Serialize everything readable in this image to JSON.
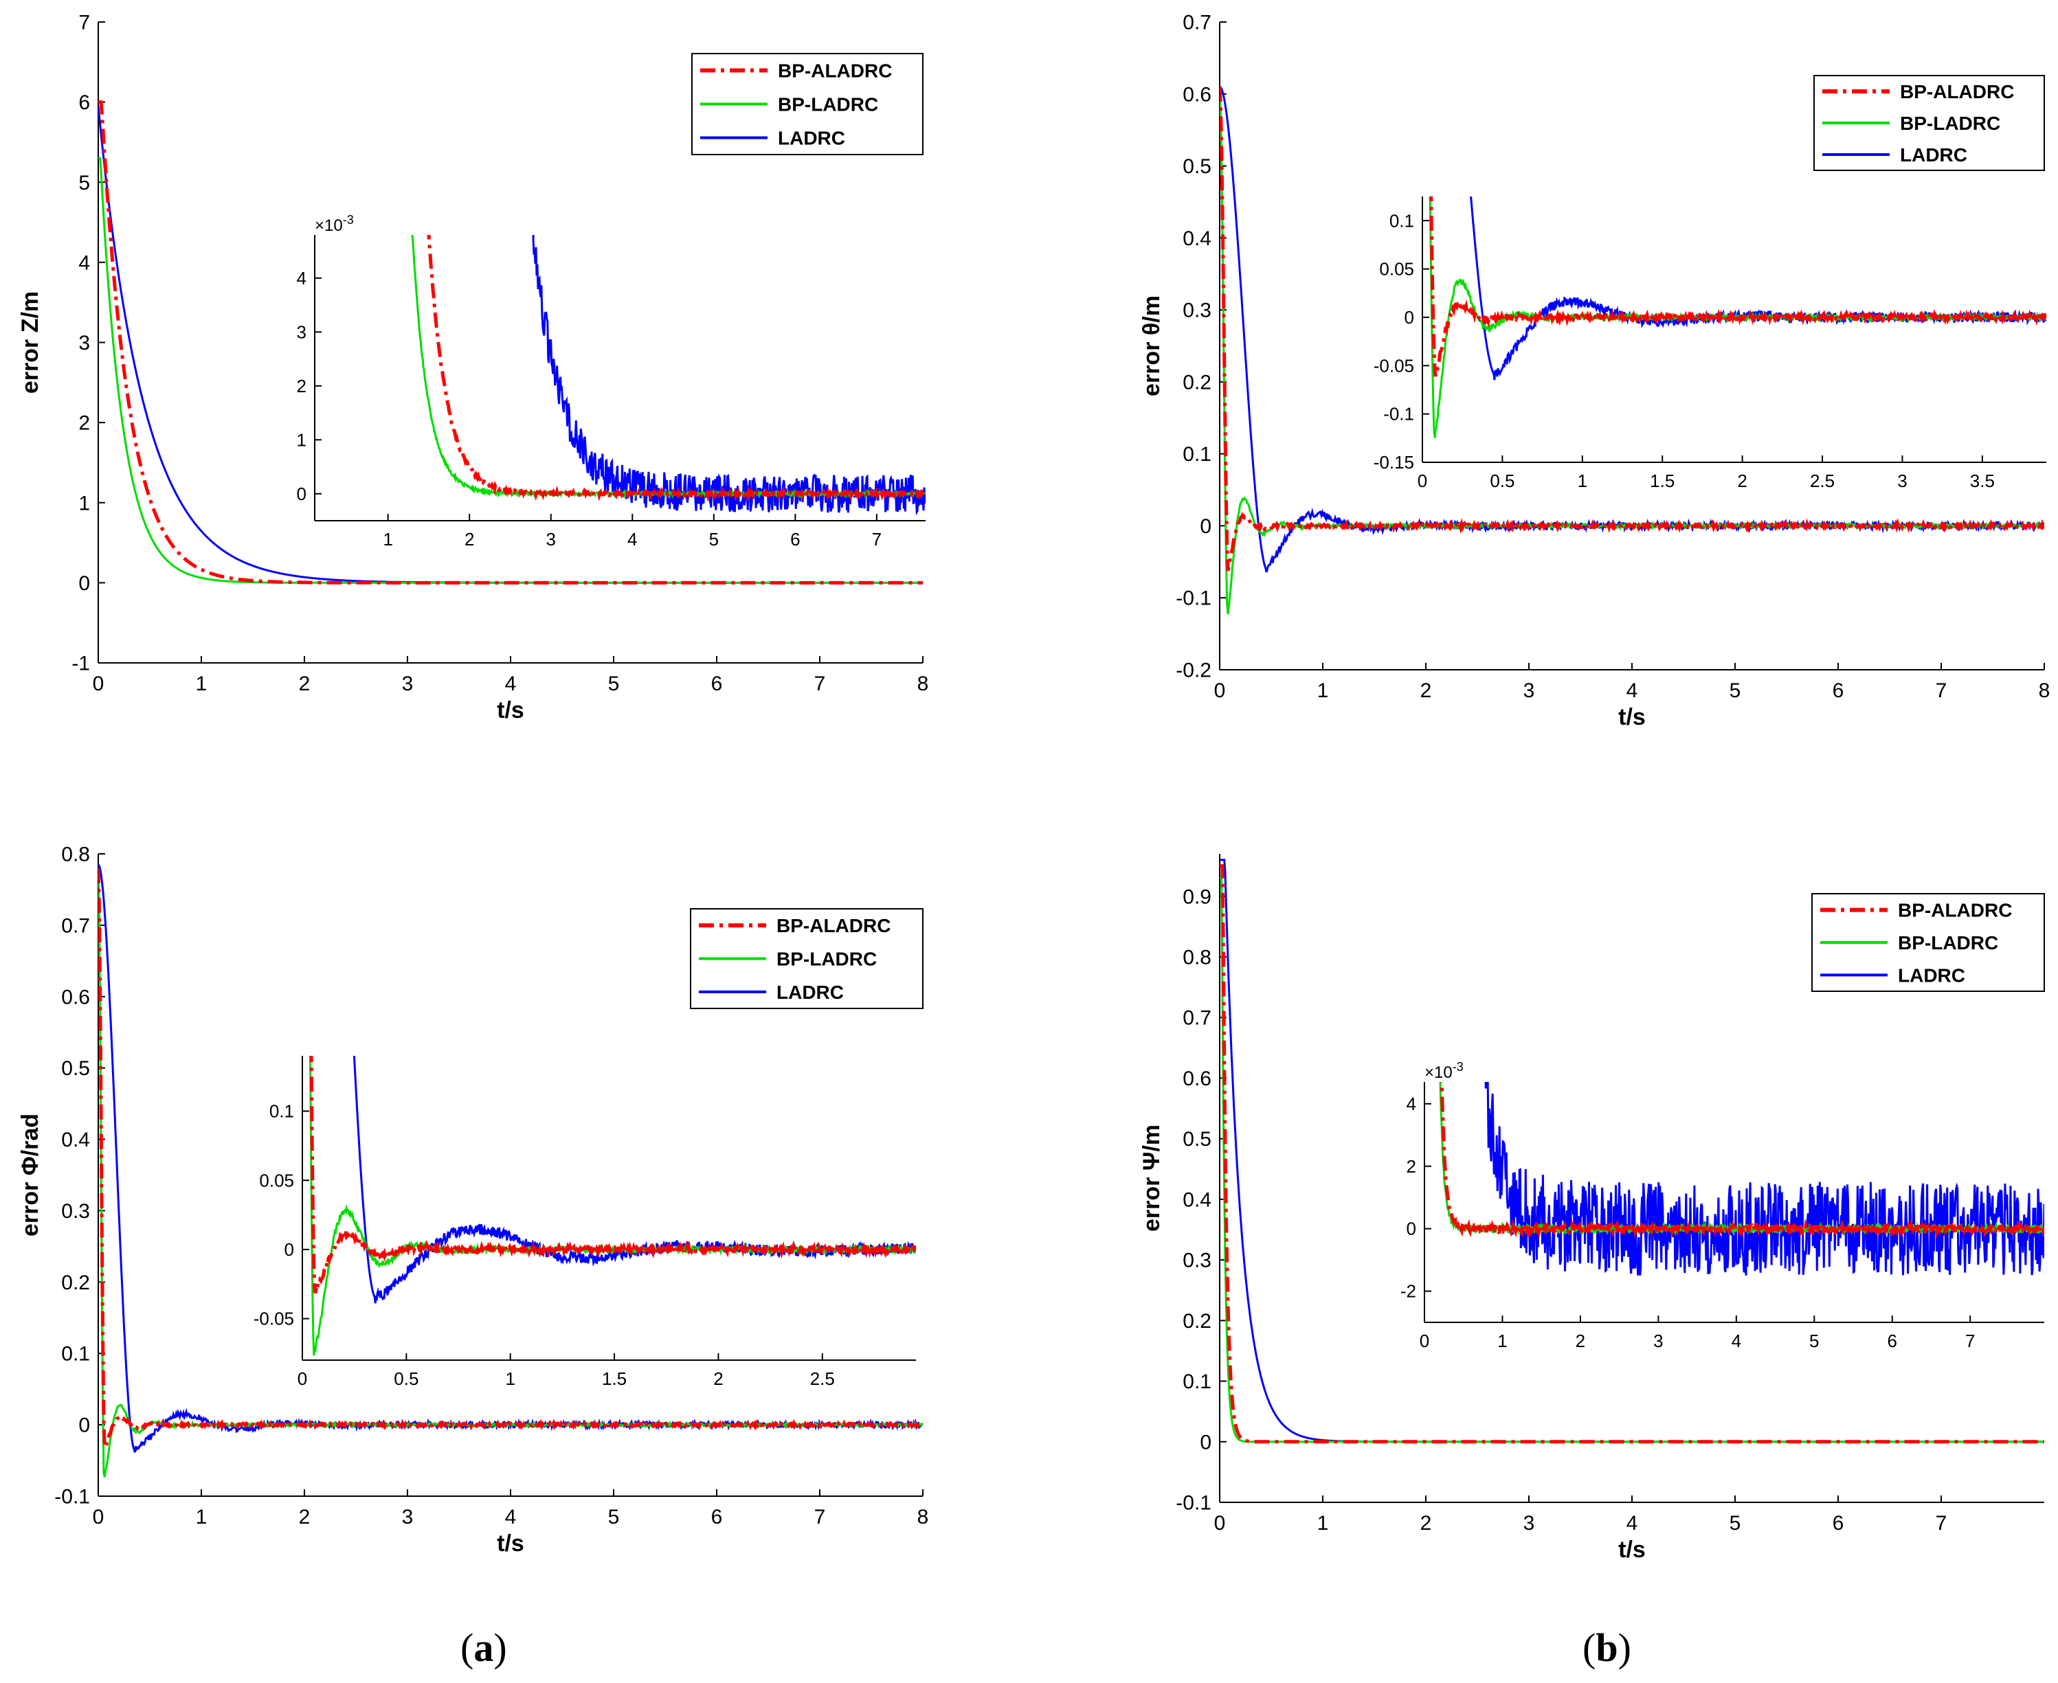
{
  "colors": {
    "bp_aladrc": "#ff0000",
    "bp_ladrc": "#00dd00",
    "ladrc": "#0000ff",
    "axis": "#000000"
  },
  "legend": [
    "BP-ALADRC",
    "BP-LADRC",
    "LADRC"
  ],
  "captions": {
    "a": "a",
    "b": "b"
  },
  "chart_data": [
    {
      "type": "line",
      "id": "p1",
      "xlabel": "t/s",
      "ylabel": "error Z/m",
      "xlim": [
        0,
        8
      ],
      "ylim": [
        -1,
        7
      ],
      "xticks": [
        "0",
        "1",
        "2",
        "3",
        "4",
        "5",
        "6",
        "7",
        "8"
      ],
      "yticks": [
        "-1",
        "0",
        "1",
        "2",
        "3",
        "4",
        "5",
        "6",
        "7"
      ],
      "series": [
        {
          "name": "BP-ALADRC",
          "style": "dashdot",
          "model": "exp",
          "y0": 6,
          "tau": 0.27,
          "delay": 0.03
        },
        {
          "name": "BP-LADRC",
          "style": "solid",
          "model": "exp",
          "y0": 5.3,
          "tau": 0.22,
          "delay": 0.02
        },
        {
          "name": "LADRC",
          "style": "solid",
          "model": "exp",
          "y0": 5.95,
          "tau": 0.45,
          "delay": 0
        }
      ],
      "inset": {
        "xlim": [
          0.1,
          7.6
        ],
        "ylim": [
          -0.5,
          4.8
        ],
        "exponent": "x10^-3",
        "xticks": [
          "1",
          "2",
          "3",
          "4",
          "5",
          "6",
          "7"
        ],
        "yticks": [
          "0",
          "1",
          "2",
          "3",
          "4"
        ],
        "series": [
          {
            "name": "BP-ALADRC",
            "style": "dashdot",
            "model": "decay",
            "start": 1.5,
            "scale": 0.22,
            "noise": 0.03
          },
          {
            "name": "BP-LADRC",
            "style": "solid",
            "model": "decay",
            "start": 1.3,
            "scale": 0.19,
            "noise": 0.03
          },
          {
            "name": "LADRC",
            "style": "solid",
            "model": "decay",
            "start": 2.78,
            "scale": 0.35,
            "noise": 0.35
          }
        ]
      }
    },
    {
      "type": "line",
      "id": "p2",
      "xlabel": "t/s",
      "ylabel": "error θ/m",
      "xlim": [
        0,
        8
      ],
      "ylim": [
        -0.2,
        0.7
      ],
      "xticks": [
        "0",
        "1",
        "2",
        "3",
        "4",
        "5",
        "6",
        "7",
        "8"
      ],
      "yticks": [
        "-0.2",
        "-0.1",
        "0",
        "0.1",
        "0.2",
        "0.3",
        "0.4",
        "0.5",
        "0.6",
        "0.7"
      ],
      "series": [
        {
          "name": "BP-ALADRC",
          "style": "dashdot",
          "model": "osc",
          "y0": 0.61,
          "t_end": 0.08,
          "amp": -0.06,
          "freq": 5.5,
          "decay": 9,
          "noise": 0.0025
        },
        {
          "name": "BP-LADRC",
          "style": "solid",
          "model": "osc",
          "y0": 0.6,
          "t_end": 0.075,
          "amp": -0.125,
          "freq": 5.5,
          "decay": 7,
          "noise": 0.0025
        },
        {
          "name": "LADRC",
          "style": "solid",
          "model": "osc",
          "y0": 0.61,
          "t_end": 0.45,
          "amp": -0.06,
          "freq": 1.8,
          "decay": 2.5,
          "noise": 0.005
        }
      ],
      "inset": {
        "xlim": [
          0,
          3.9
        ],
        "ylim": [
          -0.15,
          0.125
        ],
        "exponent": "",
        "xticks": [
          "0",
          "0.5",
          "1",
          "1.5",
          "2",
          "2.5",
          "3",
          "3.5"
        ],
        "yticks": [
          "-0.15",
          "-0.1",
          "-0.05",
          "0",
          "0.05",
          "0.1"
        ],
        "series": [
          {
            "name": "BP-ALADRC",
            "style": "dashdot",
            "model": "osc",
            "y0": 0.61,
            "t_end": 0.08,
            "amp": -0.06,
            "freq": 5.5,
            "decay": 9,
            "noise": 0.0025
          },
          {
            "name": "BP-LADRC",
            "style": "solid",
            "model": "osc",
            "y0": 0.6,
            "t_end": 0.075,
            "amp": -0.125,
            "freq": 5.5,
            "decay": 7,
            "noise": 0.0025
          },
          {
            "name": "LADRC",
            "style": "solid",
            "model": "osc",
            "y0": 0.61,
            "t_end": 0.45,
            "amp": -0.06,
            "freq": 1.8,
            "decay": 2.5,
            "noise": 0.005
          }
        ]
      }
    },
    {
      "type": "line",
      "id": "p3",
      "xlabel": "t/s",
      "ylabel": "error Φ/rad",
      "xlim": [
        0,
        8
      ],
      "ylim": [
        -0.1,
        0.8
      ],
      "xticks": [
        "0",
        "1",
        "2",
        "3",
        "4",
        "5",
        "6",
        "7",
        "8"
      ],
      "yticks": [
        "-0.1",
        "0",
        "0.1",
        "0.2",
        "0.3",
        "0.4",
        "0.5",
        "0.6",
        "0.7",
        "0.8"
      ],
      "series": [
        {
          "name": "BP-ALADRC",
          "style": "dashdot",
          "model": "osc",
          "y0": 0.78,
          "t_end": 0.06,
          "amp": -0.03,
          "freq": 5.8,
          "decay": 6,
          "noise": 0.002
        },
        {
          "name": "BP-LADRC",
          "style": "solid",
          "model": "osc",
          "y0": 0.78,
          "t_end": 0.055,
          "amp": -0.075,
          "freq": 5.8,
          "decay": 6,
          "noise": 0.002
        },
        {
          "name": "LADRC",
          "style": "solid",
          "model": "osc",
          "y0": 0.785,
          "t_end": 0.35,
          "amp": -0.035,
          "freq": 1.9,
          "decay": 1.7,
          "noise": 0.004
        }
      ],
      "inset": {
        "xlim": [
          0,
          2.95
        ],
        "ylim": [
          -0.08,
          0.14
        ],
        "exponent": "",
        "xticks": [
          "0",
          "0.5",
          "1",
          "1.5",
          "2",
          "2.5"
        ],
        "yticks": [
          "-0.05",
          "0",
          "0.05",
          "0.1"
        ],
        "series": [
          {
            "name": "BP-ALADRC",
            "style": "dashdot",
            "model": "osc",
            "y0": 0.78,
            "t_end": 0.06,
            "amp": -0.03,
            "freq": 5.8,
            "decay": 6,
            "noise": 0.002
          },
          {
            "name": "BP-LADRC",
            "style": "solid",
            "model": "osc",
            "y0": 0.78,
            "t_end": 0.055,
            "amp": -0.075,
            "freq": 5.8,
            "decay": 6,
            "noise": 0.002
          },
          {
            "name": "LADRC",
            "style": "solid",
            "model": "osc",
            "y0": 0.785,
            "t_end": 0.35,
            "amp": -0.035,
            "freq": 1.9,
            "decay": 1.7,
            "noise": 0.004
          }
        ]
      }
    },
    {
      "type": "line",
      "id": "p4",
      "xlabel": "t/s",
      "ylabel": "error Ψ/m",
      "xlim": [
        0,
        8
      ],
      "ylim": [
        -0.1,
        0.97
      ],
      "xticks": [
        "0",
        "1",
        "2",
        "3",
        "4",
        "5",
        "6",
        "7"
      ],
      "yticks": [
        "-0.1",
        "0",
        "0.1",
        "0.2",
        "0.3",
        "0.4",
        "0.5",
        "0.6",
        "0.7",
        "0.8",
        "0.9"
      ],
      "series": [
        {
          "name": "BP-ALADRC",
          "style": "dashdot",
          "model": "exp",
          "y0": 0.95,
          "tau": 0.035,
          "delay": 0.03
        },
        {
          "name": "BP-LADRC",
          "style": "solid",
          "model": "exp",
          "y0": 0.93,
          "tau": 0.03,
          "delay": 0.02
        },
        {
          "name": "LADRC",
          "style": "solid",
          "model": "exp",
          "y0": 0.96,
          "tau": 0.16,
          "delay": 0.05
        }
      ],
      "inset": {
        "xlim": [
          0,
          7.95
        ],
        "ylim": [
          -3,
          4.7
        ],
        "exponent": "x10^-3",
        "xticks": [
          "0",
          "1",
          "2",
          "3",
          "4",
          "5",
          "6",
          "7"
        ],
        "yticks": [
          "-2",
          "0",
          "2",
          "4"
        ],
        "series": [
          {
            "name": "BP-ALADRC",
            "style": "dashdot",
            "model": "decay",
            "start": 0.22,
            "scale": 0.05,
            "noise": 0.12
          },
          {
            "name": "BP-LADRC",
            "style": "solid",
            "model": "decay",
            "start": 0.2,
            "scale": 0.05,
            "noise": 0.12
          },
          {
            "name": "LADRC",
            "style": "solid",
            "model": "decay",
            "start": 0.78,
            "scale": 0.25,
            "noise": 1.5
          }
        ]
      }
    }
  ]
}
